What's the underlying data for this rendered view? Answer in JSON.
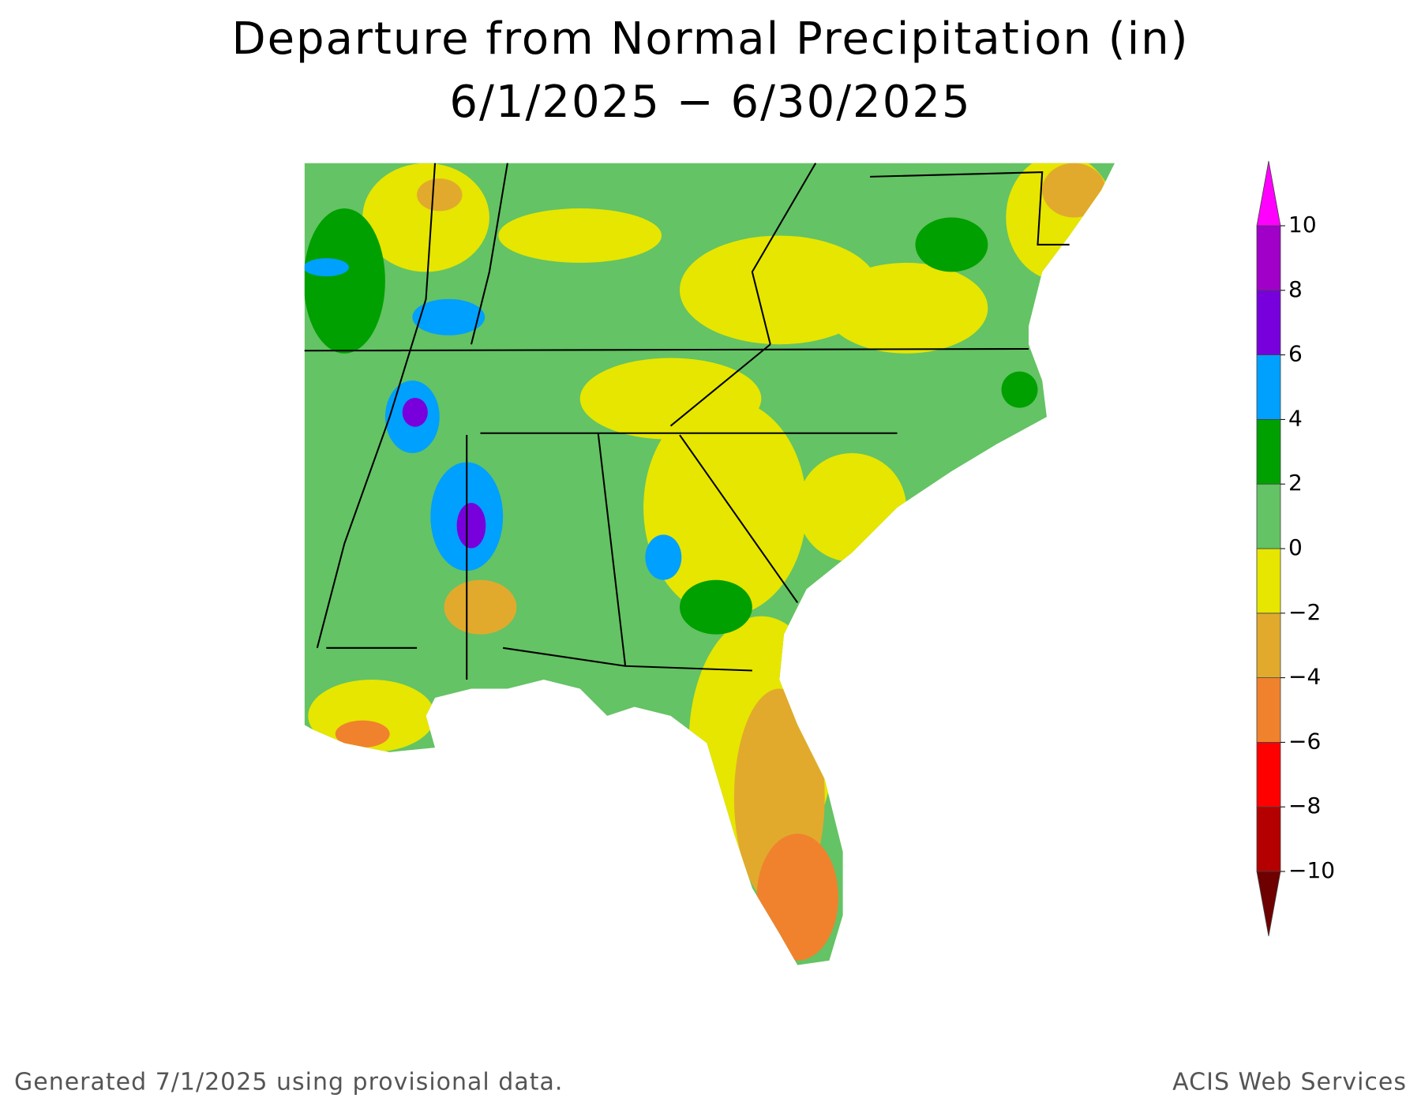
{
  "title": "Departure from Normal Precipitation (in)",
  "subtitle": "6/1/2025 − 6/30/2025",
  "legend": {
    "ticks": [
      {
        "value": -10,
        "label": "−10"
      },
      {
        "value": -8,
        "label": "−8"
      },
      {
        "value": -6,
        "label": "−6"
      },
      {
        "value": -4,
        "label": "−4"
      },
      {
        "value": -2,
        "label": "−2"
      },
      0,
      2,
      4,
      6,
      8,
      10
    ],
    "colors": [
      "#6e0000",
      "#b40000",
      "#ff0000",
      "#f0822d",
      "#e1aa2d",
      "#e6e600",
      "#64c364",
      "#00a000",
      "#00a0ff",
      "#7800dc",
      "#a000c8",
      "#ff00ff"
    ]
  },
  "footer": {
    "left": "Generated 7/1/2025 using provisional data.",
    "right": "ACIS Web Services"
  }
}
